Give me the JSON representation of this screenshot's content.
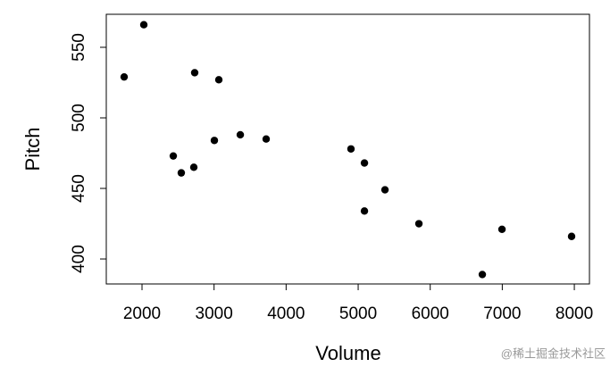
{
  "chart_data": {
    "type": "scatter",
    "x_label": "Volume",
    "y_label": "Pitch",
    "series": [
      {
        "color": "#000000",
        "x": [
          1752,
          2025,
          2731,
          3066,
          2434,
          2545,
          2719,
          3004,
          3364,
          3723,
          4900,
          5087,
          5372,
          5087,
          5843,
          6996,
          6723,
          7962
        ],
        "values": [
          529,
          566,
          532,
          527,
          473,
          461,
          465,
          484,
          488,
          485,
          478,
          468,
          449,
          434,
          425,
          421,
          389,
          416
        ]
      }
    ],
    "xlim": [
      1504,
      8210
    ],
    "ylim": [
      382.3,
      573.4
    ],
    "xticks": [
      2000,
      3000,
      4000,
      5000,
      6000,
      7000,
      8000
    ],
    "yticks": [
      400,
      450,
      500,
      550
    ],
    "watermark": "@稀土掘金技术社区"
  }
}
